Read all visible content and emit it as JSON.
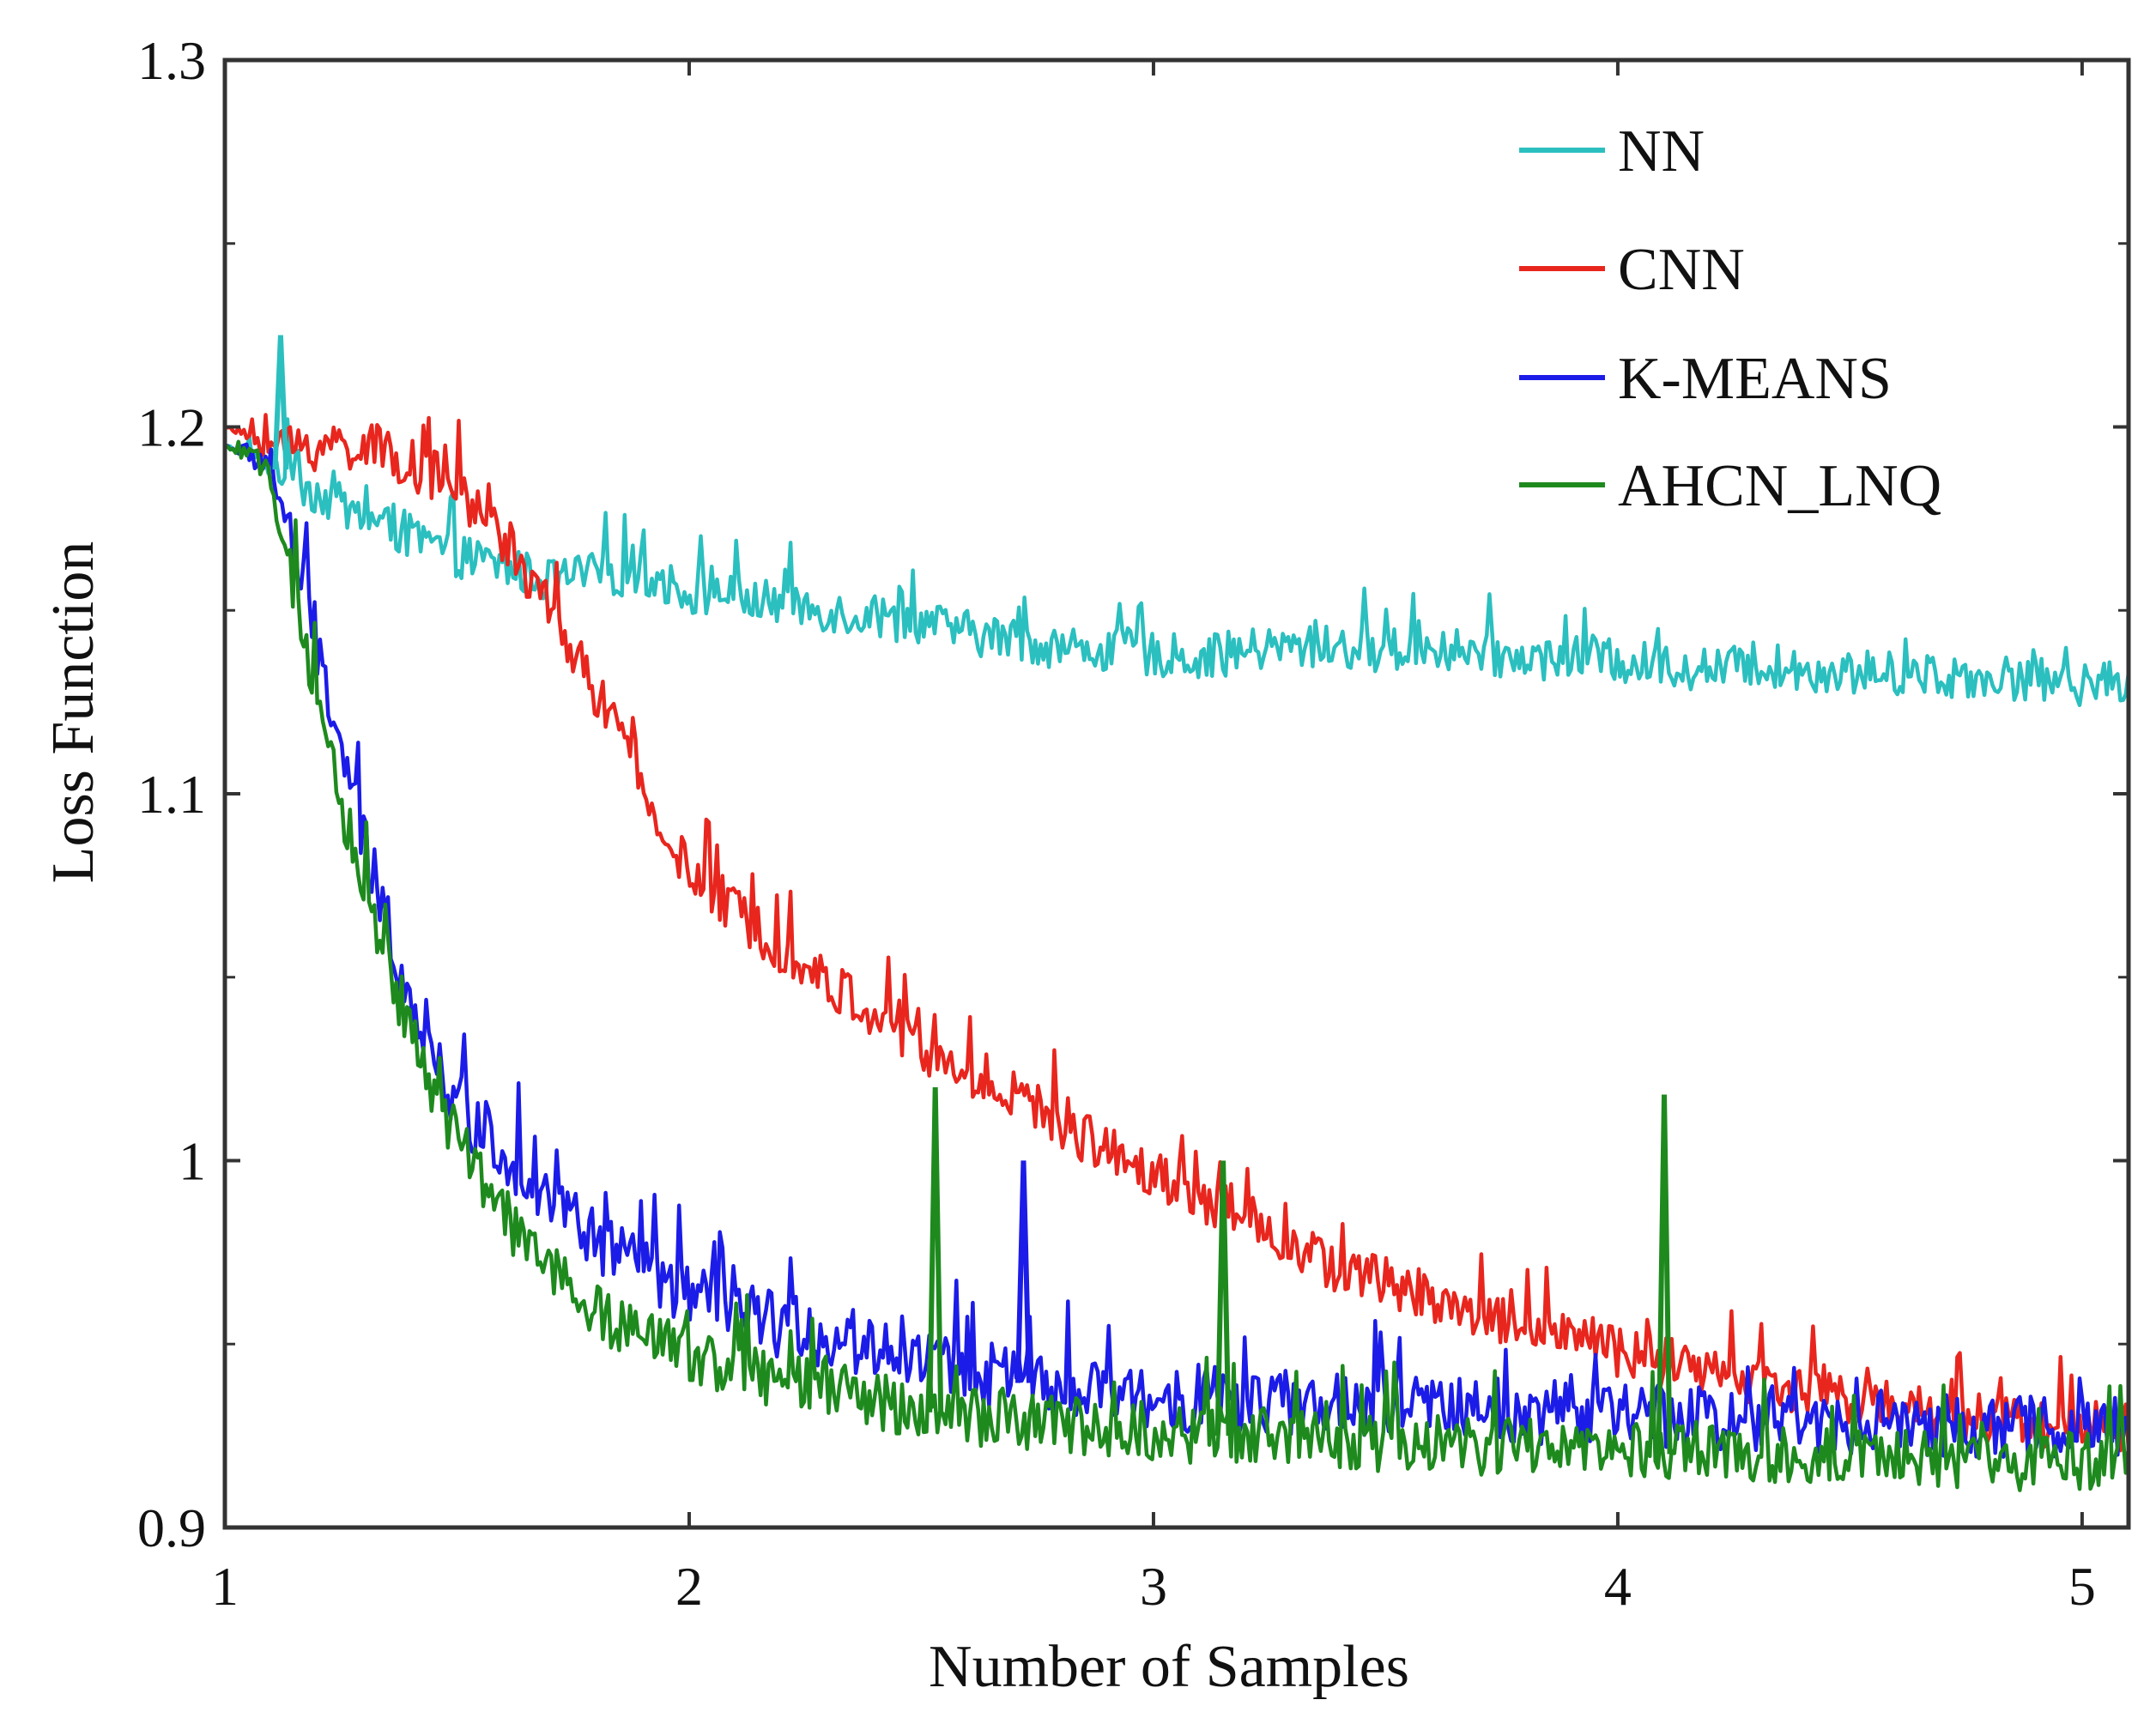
{
  "chart_data": {
    "type": "line",
    "title": "",
    "xlabel": "Number of Samples",
    "ylabel": "Loss Function",
    "xlim": [
      1,
      5.1
    ],
    "ylim": [
      0.9,
      1.3
    ],
    "xticks": [
      1,
      2,
      3,
      4,
      5
    ],
    "yticks": [
      0.9,
      1,
      1.1,
      1.2,
      1.3
    ],
    "xtick_labels": [
      "1",
      "2",
      "3",
      "4",
      "5"
    ],
    "ytick_labels": [
      "0.9",
      "1",
      "1.1",
      "1.2",
      "1.3"
    ],
    "grid": false,
    "legend_position": "top-right",
    "x": [
      1.0,
      1.1,
      1.2,
      1.3,
      1.4,
      1.5,
      1.6,
      1.7,
      1.8,
      1.9,
      2.0,
      2.1,
      2.2,
      2.3,
      2.4,
      2.5,
      2.6,
      2.7,
      2.8,
      2.9,
      3.0,
      3.1,
      3.2,
      3.3,
      3.4,
      3.5,
      3.6,
      3.7,
      3.8,
      3.9,
      4.0,
      4.1,
      4.2,
      4.3,
      4.4,
      4.5,
      4.6,
      4.7,
      4.8,
      4.9,
      5.0,
      5.1
    ],
    "series": [
      {
        "name": "NN",
        "color": "#2bbfbf",
        "values": [
          1.195,
          1.19,
          1.182,
          1.175,
          1.17,
          1.165,
          1.162,
          1.158,
          1.16,
          1.16,
          1.155,
          1.153,
          1.152,
          1.15,
          1.148,
          1.147,
          1.144,
          1.142,
          1.14,
          1.139,
          1.138,
          1.137,
          1.139,
          1.14,
          1.14,
          1.139,
          1.14,
          1.138,
          1.137,
          1.137,
          1.136,
          1.135,
          1.134,
          1.135,
          1.134,
          1.133,
          1.133,
          1.132,
          1.132,
          1.131,
          1.13,
          1.13
        ]
      },
      {
        "name": "CNN",
        "color": "#e8261e",
        "values": [
          1.2,
          1.195,
          1.195,
          1.195,
          1.19,
          1.183,
          1.17,
          1.15,
          1.128,
          1.1,
          1.078,
          1.068,
          1.058,
          1.048,
          1.04,
          1.03,
          1.022,
          1.018,
          1.01,
          1.003,
          0.997,
          0.99,
          0.985,
          0.977,
          0.97,
          0.967,
          0.963,
          0.958,
          0.955,
          0.952,
          0.948,
          0.945,
          0.942,
          0.94,
          0.937,
          0.935,
          0.933,
          0.931,
          0.93,
          0.929,
          0.928,
          0.927
        ]
      },
      {
        "name": "K-MEANS",
        "color": "#1c1ce8",
        "values": [
          1.195,
          1.19,
          1.14,
          1.085,
          1.045,
          1.015,
          1.003,
          0.99,
          0.978,
          0.97,
          0.963,
          0.958,
          0.955,
          0.952,
          0.95,
          0.948,
          0.943,
          0.94,
          0.937,
          0.936,
          0.935,
          0.935,
          0.934,
          0.934,
          0.933,
          0.933,
          0.933,
          0.932,
          0.932,
          0.931,
          0.931,
          0.93,
          0.93,
          0.93,
          0.929,
          0.929,
          0.928,
          0.928,
          0.928,
          0.927,
          0.927,
          0.927
        ]
      },
      {
        "name": "AHCN_LNQ",
        "color": "#1e8a1e",
        "values": [
          1.195,
          1.188,
          1.12,
          1.075,
          1.035,
          1.005,
          0.985,
          0.97,
          0.958,
          0.952,
          0.948,
          0.943,
          0.94,
          0.937,
          0.935,
          0.932,
          0.93,
          0.929,
          0.928,
          0.927,
          0.926,
          0.925,
          0.925,
          0.924,
          0.924,
          0.923,
          0.923,
          0.922,
          0.922,
          0.921,
          0.921,
          0.92,
          0.92,
          0.92,
          0.919,
          0.919,
          0.919,
          0.918,
          0.918,
          0.918,
          0.918,
          0.917
        ]
      }
    ],
    "spikes": [
      {
        "series": "NN",
        "x": 1.12,
        "y": 1.225
      },
      {
        "series": "AHCN_LNQ",
        "x": 2.53,
        "y": 1.02
      },
      {
        "series": "K-MEANS",
        "x": 2.72,
        "y": 1.0
      },
      {
        "series": "AHCN_LNQ",
        "x": 3.15,
        "y": 1.0
      },
      {
        "series": "AHCN_LNQ",
        "x": 4.1,
        "y": 1.018
      }
    ]
  }
}
